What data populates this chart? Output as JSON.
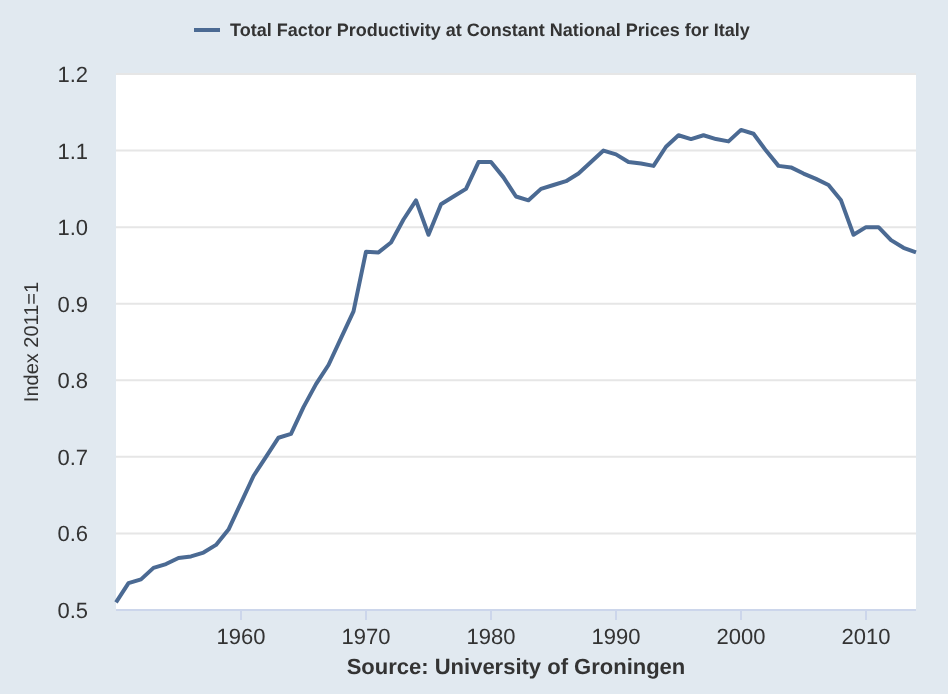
{
  "chart_data": {
    "type": "line",
    "ylabel": "Index 2011=1",
    "annotations": [
      "Source: University of Groningen"
    ],
    "x": [
      1950,
      1951,
      1952,
      1953,
      1954,
      1955,
      1956,
      1957,
      1958,
      1959,
      1960,
      1961,
      1962,
      1963,
      1964,
      1965,
      1966,
      1967,
      1968,
      1969,
      1970,
      1971,
      1972,
      1973,
      1974,
      1975,
      1976,
      1977,
      1978,
      1979,
      1980,
      1981,
      1982,
      1983,
      1984,
      1985,
      1986,
      1987,
      1988,
      1989,
      1990,
      1991,
      1992,
      1993,
      1994,
      1995,
      1996,
      1997,
      1998,
      1999,
      2000,
      2001,
      2002,
      2003,
      2004,
      2005,
      2006,
      2007,
      2008,
      2009,
      2010,
      2011,
      2012,
      2013,
      2014
    ],
    "series": [
      {
        "name": "Total Factor Productivity at Constant National Prices for Italy",
        "color": "#4b6a93",
        "values": [
          0.51,
          0.535,
          0.54,
          0.555,
          0.56,
          0.568,
          0.57,
          0.575,
          0.585,
          0.605,
          0.64,
          0.675,
          0.7,
          0.725,
          0.73,
          0.765,
          0.795,
          0.82,
          0.855,
          0.89,
          0.968,
          0.967,
          0.98,
          1.01,
          1.035,
          0.99,
          1.03,
          1.04,
          1.05,
          1.085,
          1.085,
          1.065,
          1.04,
          1.035,
          1.05,
          1.055,
          1.06,
          1.07,
          1.085,
          1.1,
          1.095,
          1.085,
          1.083,
          1.08,
          1.105,
          1.12,
          1.115,
          1.12,
          1.115,
          1.112,
          1.127,
          1.122,
          1.1,
          1.08,
          1.078,
          1.07,
          1.063,
          1.055,
          1.035,
          0.99,
          1.0,
          1.0,
          0.983,
          0.973,
          0.967
        ]
      }
    ],
    "xlim": [
      1950,
      2014
    ],
    "xticks": [
      1960,
      1970,
      1980,
      1990,
      2000,
      2010
    ],
    "ylim": [
      0.5,
      1.2
    ],
    "yticks": [
      {
        "value": 0.5,
        "label": "0.5"
      },
      {
        "value": 0.6,
        "label": "0.6"
      },
      {
        "value": 0.7,
        "label": "0.7"
      },
      {
        "value": 0.8,
        "label": "0.8"
      },
      {
        "value": 0.9,
        "label": "0.9"
      },
      {
        "value": 1.0,
        "label": "1.0"
      },
      {
        "value": 1.1,
        "label": "1.1"
      },
      {
        "value": 1.2,
        "label": "1.2"
      }
    ],
    "grid": "y",
    "legend": "top left",
    "line_style": "solid",
    "marker": "none"
  }
}
